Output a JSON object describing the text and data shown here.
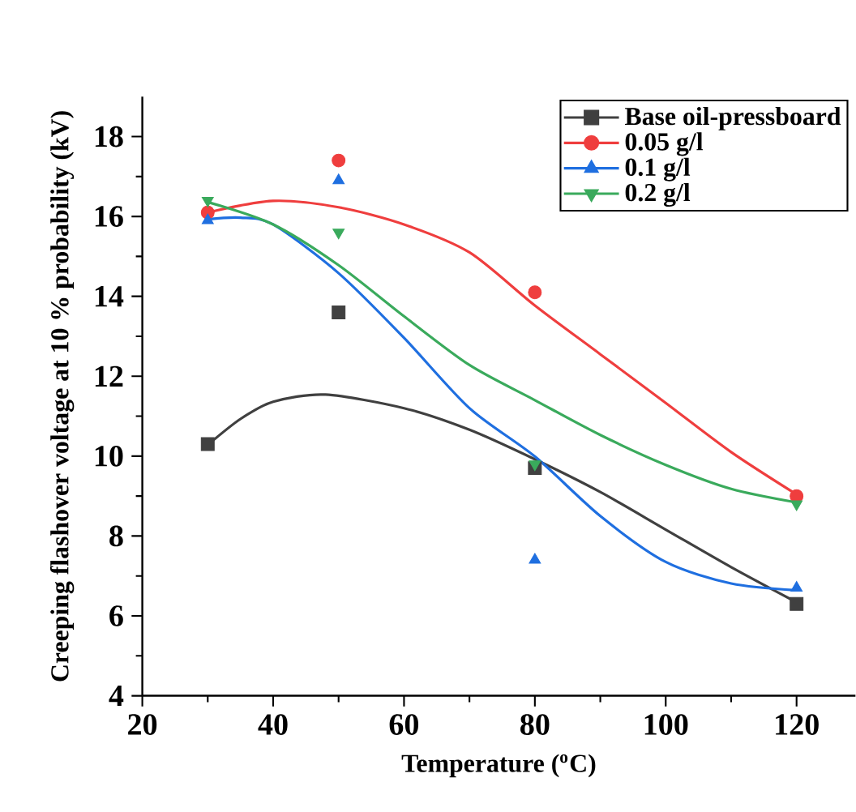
{
  "chart_data": {
    "type": "scatter",
    "xlabel": "Temperature ($^{o}$C)",
    "ylabel": "Creeping flashover voltage at 10 % probability (kV)",
    "x": [
      30,
      50,
      80,
      120
    ],
    "xlim": [
      20,
      129
    ],
    "ylim": [
      4,
      19
    ],
    "xticks": [
      20,
      40,
      60,
      80,
      100,
      120
    ],
    "yticks": [
      4,
      6,
      8,
      10,
      12,
      14,
      16,
      18
    ],
    "legend": "top right",
    "series": [
      {
        "name": "Base oil-pressboard",
        "color": "#404040",
        "marker": "square",
        "values": [
          10.3,
          13.6,
          9.7,
          6.3
        ]
      },
      {
        "name": "0.05 g/l",
        "color": "#ef3e3e",
        "marker": "circle",
        "values": [
          16.1,
          17.4,
          14.1,
          9.0
        ]
      },
      {
        "name": "0.1 g/l",
        "color": "#1f6fe0",
        "marker": "triangle",
        "values": [
          15.9,
          16.9,
          7.4,
          6.7
        ]
      },
      {
        "name": "0.2 g/l",
        "color": "#3aaa5c",
        "marker": "triangle-down",
        "values": [
          16.4,
          15.6,
          9.8,
          8.8
        ]
      },
      {
        "type": "line",
        "color": "#404040",
        "x": [
          30,
          35,
          40,
          48,
          60,
          70,
          80,
          90,
          100,
          110,
          120
        ],
        "values": [
          10.28,
          10.93,
          11.36,
          11.54,
          11.2,
          10.66,
          9.92,
          9.1,
          8.16,
          7.22,
          6.34
        ]
      },
      {
        "type": "line",
        "color": "#ef3e3e",
        "x": [
          30,
          40,
          50,
          60,
          70,
          80,
          90,
          100,
          110,
          120
        ],
        "values": [
          16.1,
          16.39,
          16.23,
          15.8,
          15.1,
          13.77,
          12.55,
          11.33,
          10.1,
          9.04
        ]
      },
      {
        "type": "line",
        "color": "#1f6fe0",
        "x": [
          30,
          35,
          40,
          50,
          60,
          70,
          80,
          90,
          100,
          110,
          120
        ],
        "values": [
          15.93,
          15.97,
          15.8,
          14.58,
          12.96,
          11.2,
          9.99,
          8.5,
          7.35,
          6.81,
          6.64
        ]
      },
      {
        "type": "line",
        "color": "#3aaa5c",
        "x": [
          30,
          40,
          50,
          60,
          70,
          80,
          90,
          100,
          110,
          120
        ],
        "values": [
          16.36,
          15.8,
          14.78,
          13.5,
          12.28,
          11.4,
          10.53,
          9.78,
          9.18,
          8.84
        ]
      }
    ]
  }
}
